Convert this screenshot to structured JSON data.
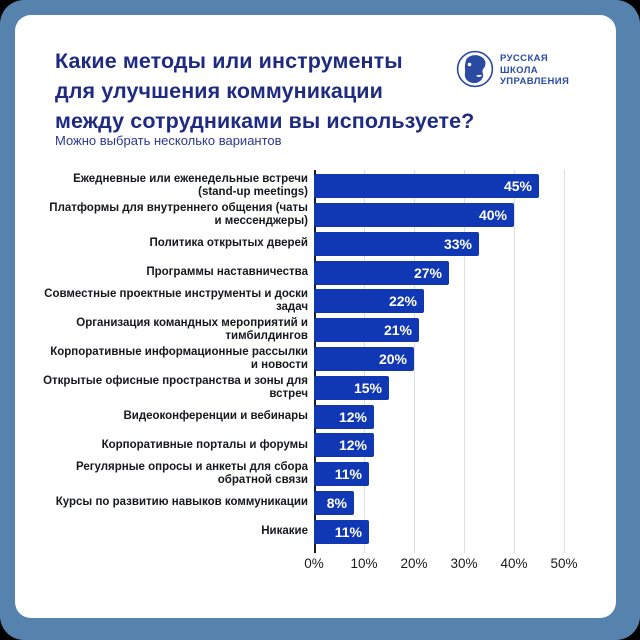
{
  "header": {
    "title_lines": [
      "Какие методы или инструменты",
      "для улучшения коммуникации",
      "между сотрудниками вы используете?"
    ],
    "subtitle": "Можно выбрать несколько вариантов",
    "logo": {
      "name": "Русская Школа Управления",
      "lines": [
        "РУССКАЯ",
        "ШКОЛА",
        "УПРАВЛЕНИЯ"
      ]
    }
  },
  "chart_data": {
    "type": "bar",
    "orientation": "horizontal",
    "title": "Какие методы или инструменты для улучшения коммуникации между сотрудниками вы используете?",
    "subtitle": "Можно выбрать несколько вариантов",
    "categories": [
      "Ежедневные или еженедельные встречи (stand-up meetings)",
      "Платформы для внутреннего общения (чаты и мессенджеры)",
      "Политика открытых дверей",
      "Программы наставничества",
      "Совместные проектные инструменты и доски задач",
      "Организация командных мероприятий и тимбилдингов",
      "Корпоративные информационные рассылки и новости",
      "Открытые офисные пространства и зоны для встреч",
      "Видеоконференции и вебинары",
      "Корпоративные порталы и форумы",
      "Регулярные опросы и анкеты для сбора обратной связи",
      "Курсы по развитию навыков коммуникации",
      "Никакие"
    ],
    "values": [
      45,
      40,
      33,
      27,
      22,
      21,
      20,
      15,
      12,
      12,
      11,
      8,
      11
    ],
    "value_suffix": "%",
    "x_ticks": [
      "0%",
      "10%",
      "20%",
      "30%",
      "40%",
      "50%"
    ],
    "xlim": [
      0,
      50
    ],
    "grid": true,
    "legend": false,
    "bar_color": "#1138b4"
  },
  "colors": {
    "frame_border": "#5583ad",
    "card_background": "#ffffff",
    "title_text": "#1e2b80",
    "subtitle_text": "#2c3a8e",
    "logo_blue": "#2b4ba3",
    "bar_blue": "#1138b4",
    "category_text": "#16181d",
    "axis_text": "#1a1a1a",
    "gridline": "#dedede"
  }
}
